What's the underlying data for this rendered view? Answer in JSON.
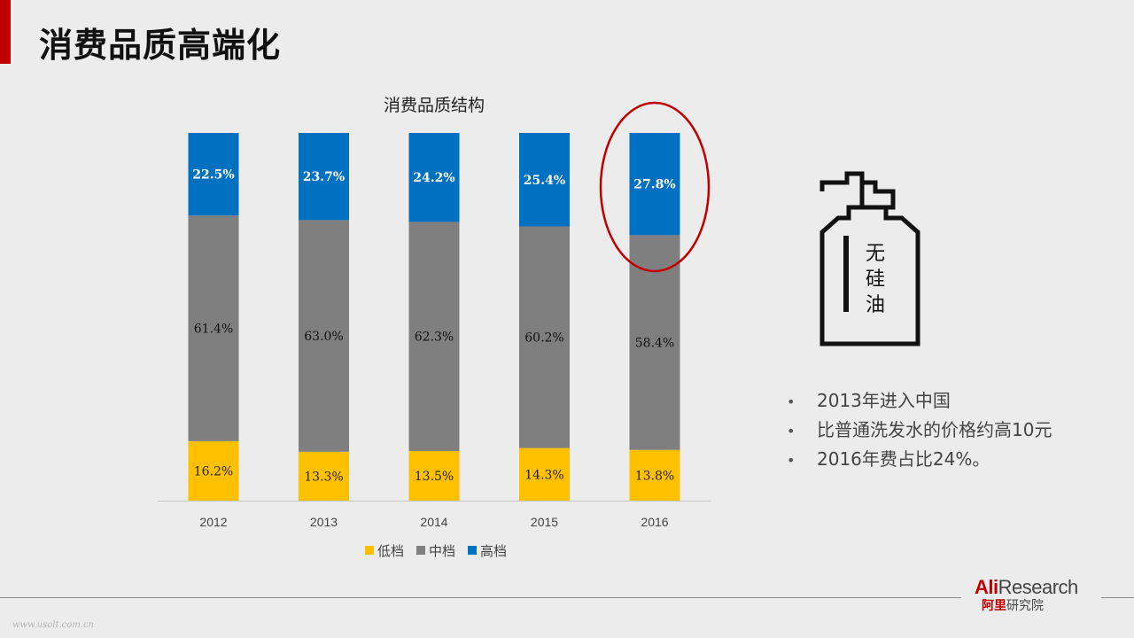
{
  "page": {
    "title": "消费品质高端化"
  },
  "colors": {
    "accent": "#c00000",
    "low": "#ffc000",
    "mid": "#7f7f7f",
    "high": "#0070c0",
    "highlight_ellipse": "#c00000"
  },
  "chart_data": {
    "type": "bar",
    "stacked": true,
    "percent": true,
    "title": "消费品质结构",
    "categories": [
      "2012",
      "2013",
      "2014",
      "2015",
      "2016"
    ],
    "series": [
      {
        "name": "低档",
        "color": "#ffc000",
        "values": [
          16.2,
          13.3,
          13.5,
          14.3,
          13.8
        ],
        "labels": [
          "16.2%",
          "13.3%",
          "13.5%",
          "14.3%",
          "13.8%"
        ]
      },
      {
        "name": "中档",
        "color": "#7f7f7f",
        "values": [
          61.4,
          63.0,
          62.3,
          60.2,
          58.4
        ],
        "labels": [
          "61.4%",
          "63.0%",
          "62.3%",
          "60.2%",
          "58.4%"
        ]
      },
      {
        "name": "高档",
        "color": "#0070c0",
        "values": [
          22.5,
          23.7,
          24.2,
          25.4,
          27.8
        ],
        "labels": [
          "22.5%",
          "23.7%",
          "24.2%",
          "25.4%",
          "27.8%"
        ]
      }
    ],
    "legend": "bottom",
    "highlight": "2016"
  },
  "product": {
    "icon": "pump-bottle-icon",
    "label_chars": [
      "无",
      "硅",
      "油"
    ]
  },
  "bullets": [
    "2013年进入中国",
    "比普通洗发水的价格约高10元",
    "2016年费占比24%。"
  ],
  "brand": {
    "latin_red": "Ali",
    "latin": "Research",
    "cn_red": "阿里",
    "cn": "研究院"
  },
  "watermark": "www.usolt.com.cn"
}
